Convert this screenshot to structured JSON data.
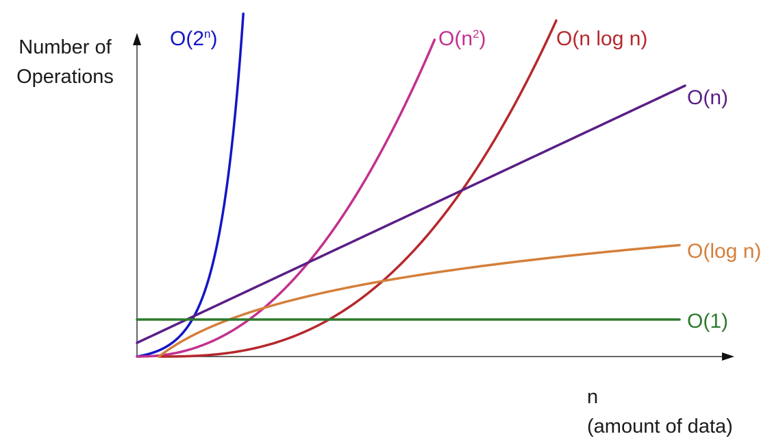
{
  "chart_data": {
    "type": "line",
    "title": "",
    "ylabel_lines": [
      "Number of",
      "Operations"
    ],
    "xlabel_lines": [
      "n",
      "(amount of data)"
    ],
    "xlim": [
      0,
      100
    ],
    "ylim": [
      0,
      100
    ],
    "grid": false,
    "series": [
      {
        "id": "exp",
        "name": "O(2ⁿ)",
        "label_base": "O(2",
        "label_sup": "n",
        "label_tail": ")",
        "color": "#1316c4",
        "fn": "exp2",
        "x_end": 19.4
      },
      {
        "id": "sq",
        "name": "O(n²)",
        "label_base": "O(n",
        "label_sup": "2",
        "label_tail": ")",
        "color": "#c2318e",
        "fn": "square",
        "x_end": 54.3
      },
      {
        "id": "nlogn",
        "name": "O(n log n)",
        "label_base": "O(n log n)",
        "label_sup": "",
        "label_tail": "",
        "color": "#b5282c",
        "fn": "nlogn",
        "x_end": 76.5
      },
      {
        "id": "lin",
        "name": "O(n)",
        "label_base": "O(n)",
        "label_sup": "",
        "label_tail": "",
        "color": "#5a1e86",
        "fn": "linear",
        "x_end": 100
      },
      {
        "id": "log",
        "name": "O(log n)",
        "label_base": "O(log n)",
        "label_sup": "",
        "label_tail": "",
        "color": "#d47f3a",
        "fn": "log",
        "x_end": 99
      },
      {
        "id": "const",
        "name": "O(1)",
        "label_base": "O(1)",
        "label_sup": "",
        "label_tail": "",
        "color": "#2c7a2c",
        "fn": "constant",
        "x_end": 99
      }
    ]
  }
}
